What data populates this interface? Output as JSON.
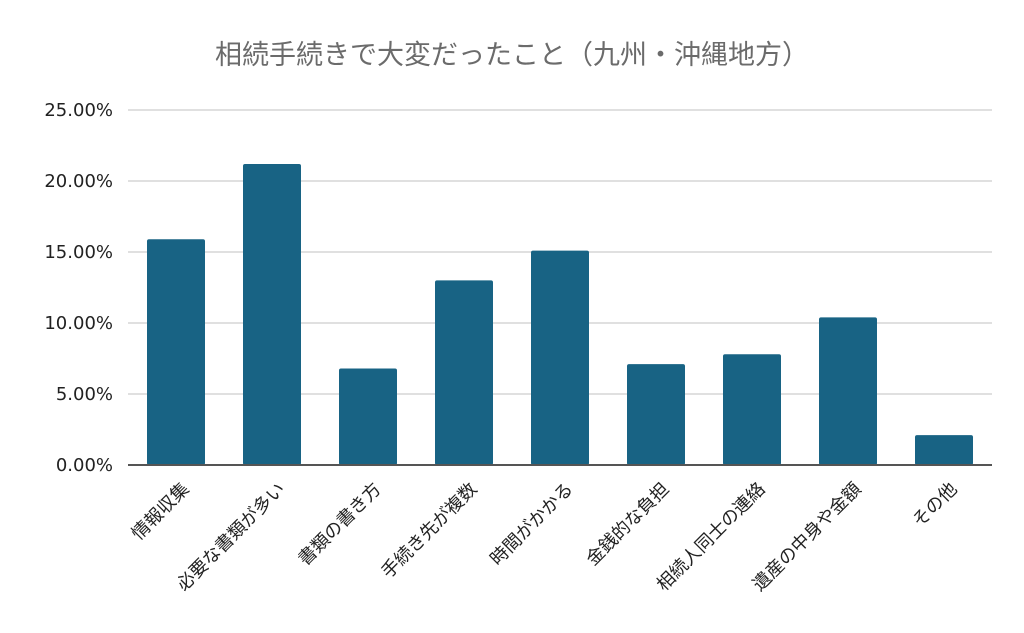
{
  "chart_data": {
    "type": "bar",
    "title": "相続手続きで大変だったこと（九州・沖縄地方）",
    "xlabel": "",
    "ylabel": "",
    "categories": [
      "情報収集",
      "必要な書類が多い",
      "書類の書き方",
      "手続き先が複数",
      "時間がかかる",
      "金銭的な負担",
      "相続人同士の連絡",
      "遺産の中身や金額",
      "その他"
    ],
    "values": [
      15.9,
      21.2,
      6.8,
      13.0,
      15.1,
      7.1,
      7.8,
      10.4,
      2.1
    ],
    "ylim": [
      0,
      25
    ],
    "yticks": [
      "0.00%",
      "5.00%",
      "10.00%",
      "15.00%",
      "20.00%",
      "25.00%"
    ],
    "grid": true,
    "legend": "none",
    "bar_color": "#186384"
  }
}
